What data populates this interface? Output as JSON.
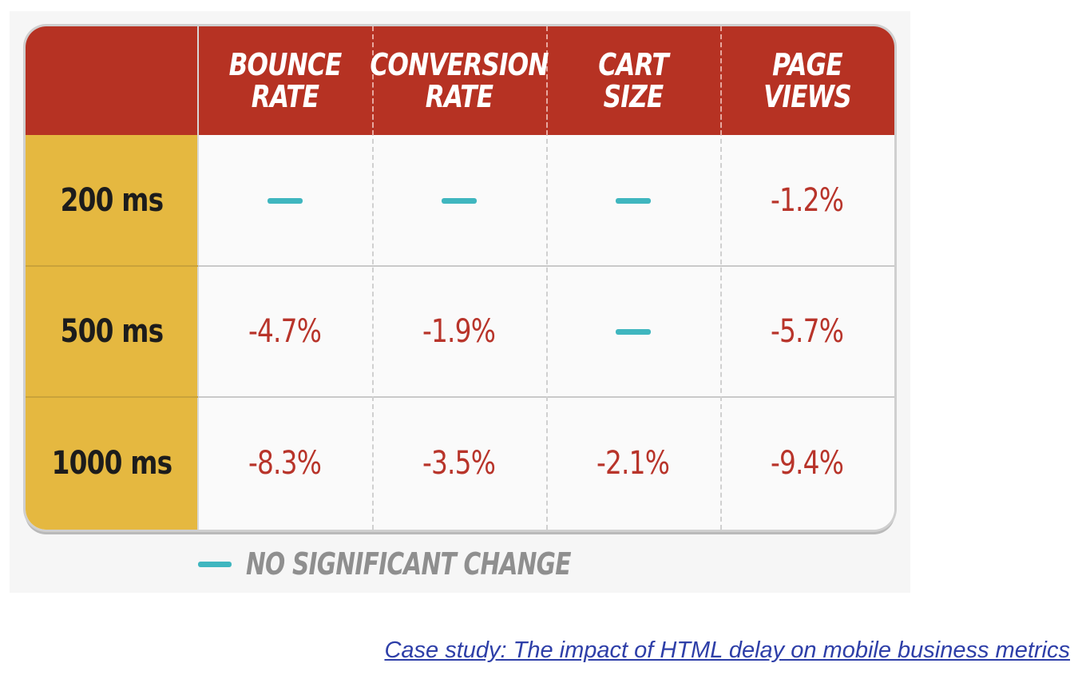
{
  "chart_data": {
    "type": "table",
    "columns": [
      "BOUNCE\nRATE",
      "CONVERSION\nRATE",
      "CART\nSIZE",
      "PAGE\nVIEWS"
    ],
    "rows": [
      {
        "label": "200 ms",
        "values": [
          "—",
          "—",
          "—",
          "-1.2%"
        ]
      },
      {
        "label": "500 ms",
        "values": [
          "-4.7%",
          "-1.9%",
          "—",
          "-5.7%"
        ]
      },
      {
        "label": "1000 ms",
        "values": [
          "-8.3%",
          "-3.5%",
          "-2.1%",
          "-9.4%"
        ]
      }
    ],
    "legend": {
      "symbol": "—",
      "text": "NO SIGNIFICANT CHANGE"
    },
    "colors": {
      "header": "#b63223",
      "row_label_bg": "#e5b840",
      "value_text": "#b8342a",
      "no_change_mark": "#3fb6bf",
      "legend_text": "#8f8f8f"
    }
  },
  "caption": {
    "text": "Case study: The impact of HTML delay on mobile business metrics"
  }
}
